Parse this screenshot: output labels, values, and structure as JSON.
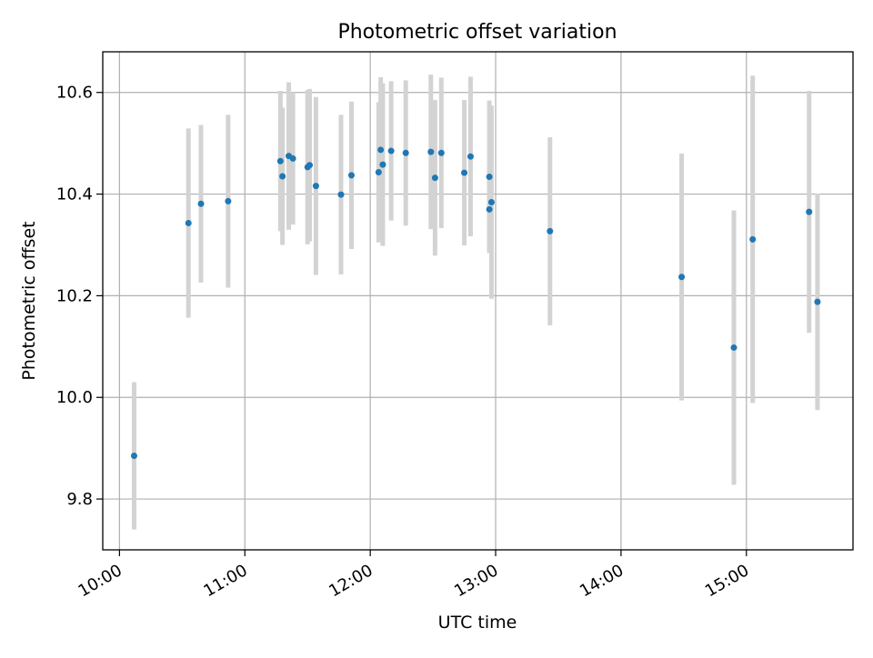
{
  "chart_data": {
    "type": "scatter",
    "title": "Photometric offset variation",
    "xlabel": "UTC time",
    "ylabel": "Photometric offset",
    "x_unit": "time-of-day (hours)",
    "xlim": [
      "09:52",
      "15:51"
    ],
    "ylim": [
      9.7,
      10.68
    ],
    "xticks": [
      {
        "value": "10:00",
        "label": "10:00"
      },
      {
        "value": "11:00",
        "label": "11:00"
      },
      {
        "value": "12:00",
        "label": "12:00"
      },
      {
        "value": "13:00",
        "label": "13:00"
      },
      {
        "value": "14:00",
        "label": "14:00"
      },
      {
        "value": "15:00",
        "label": "15:00"
      }
    ],
    "yticks": [
      {
        "value": 9.8,
        "label": "9.8"
      },
      {
        "value": 10.0,
        "label": "10.0"
      },
      {
        "value": 10.2,
        "label": "10.2"
      },
      {
        "value": 10.4,
        "label": "10.4"
      },
      {
        "value": 10.6,
        "label": "10.6"
      }
    ],
    "grid": true,
    "legend": "none",
    "colors": {
      "point": "#1f77b4",
      "errorbar": "#d3d3d3",
      "grid": "#b0b0b0"
    },
    "points": [
      {
        "x": "10:07",
        "y": 9.885,
        "err": 0.145
      },
      {
        "x": "10:33",
        "y": 10.343,
        "err": 0.186
      },
      {
        "x": "10:39",
        "y": 10.381,
        "err": 0.155
      },
      {
        "x": "10:52",
        "y": 10.386,
        "err": 0.17
      },
      {
        "x": "11:17",
        "y": 10.465,
        "err": 0.138
      },
      {
        "x": "11:18",
        "y": 10.435,
        "err": 0.135
      },
      {
        "x": "11:21",
        "y": 10.475,
        "err": 0.145
      },
      {
        "x": "11:23",
        "y": 10.47,
        "err": 0.13
      },
      {
        "x": "11:30",
        "y": 10.453,
        "err": 0.152
      },
      {
        "x": "11:31",
        "y": 10.457,
        "err": 0.15
      },
      {
        "x": "11:34",
        "y": 10.416,
        "err": 0.175
      },
      {
        "x": "11:46",
        "y": 10.399,
        "err": 0.157
      },
      {
        "x": "11:51",
        "y": 10.437,
        "err": 0.145
      },
      {
        "x": "12:04",
        "y": 10.443,
        "err": 0.138
      },
      {
        "x": "12:05",
        "y": 10.487,
        "err": 0.143
      },
      {
        "x": "12:06",
        "y": 10.458,
        "err": 0.16
      },
      {
        "x": "12:10",
        "y": 10.485,
        "err": 0.137
      },
      {
        "x": "12:17",
        "y": 10.481,
        "err": 0.143
      },
      {
        "x": "12:29",
        "y": 10.483,
        "err": 0.152
      },
      {
        "x": "12:31",
        "y": 10.432,
        "err": 0.153
      },
      {
        "x": "12:34",
        "y": 10.481,
        "err": 0.148
      },
      {
        "x": "12:45",
        "y": 10.442,
        "err": 0.143
      },
      {
        "x": "12:48",
        "y": 10.474,
        "err": 0.157
      },
      {
        "x": "12:57",
        "y": 10.434,
        "err": 0.15
      },
      {
        "x": "12:57",
        "y": 10.37,
        "err": 0.085
      },
      {
        "x": "12:58",
        "y": 10.384,
        "err": 0.19
      },
      {
        "x": "13:26",
        "y": 10.327,
        "err": 0.185
      },
      {
        "x": "14:29",
        "y": 10.237,
        "err": 0.243
      },
      {
        "x": "14:54",
        "y": 10.098,
        "err": 0.27
      },
      {
        "x": "15:03",
        "y": 10.311,
        "err": 0.322
      },
      {
        "x": "15:30",
        "y": 10.365,
        "err": 0.238
      },
      {
        "x": "15:34",
        "y": 10.188,
        "err": 0.213
      }
    ]
  }
}
